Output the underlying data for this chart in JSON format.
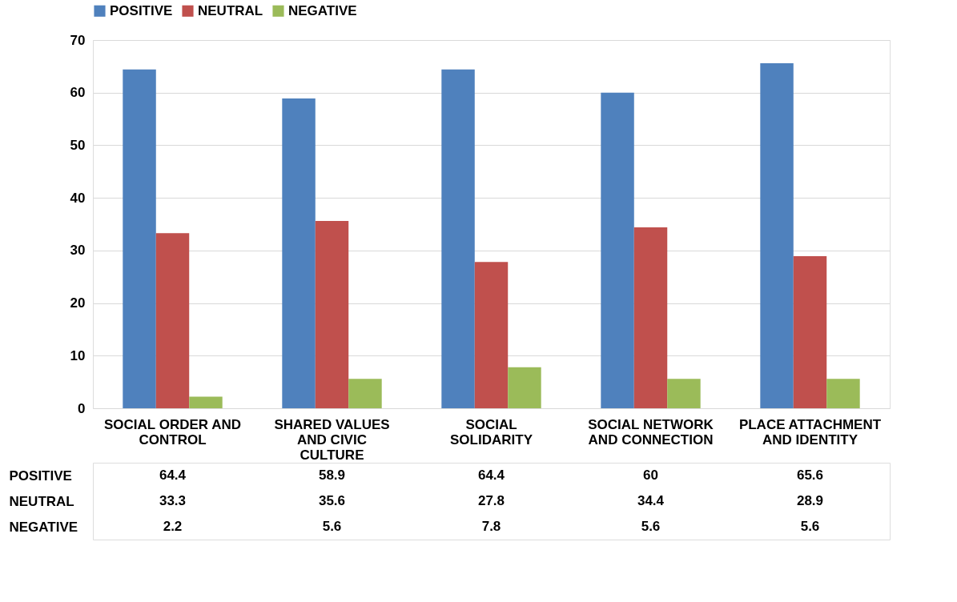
{
  "chart_data": {
    "type": "bar",
    "categories": [
      "SOCIAL ORDER AND CONTROL",
      "SHARED VALUES AND CIVIC CULTURE",
      "SOCIAL SOLIDARITY",
      "SOCIAL NETWORK AND CONNECTION",
      "PLACE ATTACHMENT AND IDENTITY"
    ],
    "series": [
      {
        "name": "POSITIVE",
        "color": "#4f81bd",
        "values": [
          64.4,
          58.9,
          64.4,
          60,
          65.6
        ]
      },
      {
        "name": "NEUTRAL",
        "color": "#c0504d",
        "values": [
          33.3,
          35.6,
          27.8,
          34.4,
          28.9
        ]
      },
      {
        "name": "NEGATIVE",
        "color": "#9bbb59",
        "values": [
          2.2,
          5.6,
          7.8,
          5.6,
          5.6
        ]
      }
    ],
    "ylim": [
      0,
      70
    ],
    "yticks": [
      0,
      10,
      20,
      30,
      40,
      50,
      60,
      70
    ],
    "grid": "y",
    "legend": "top",
    "data_labels": true
  }
}
